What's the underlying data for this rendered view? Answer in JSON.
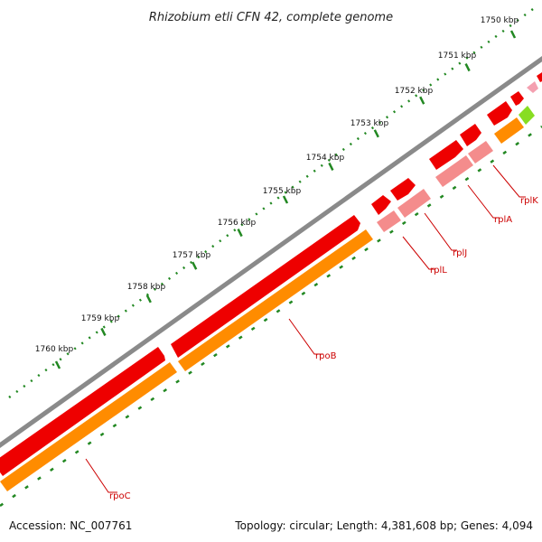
{
  "title": "Rhizobium etli CFN 42, complete genome",
  "footer": {
    "accession": "Accession: NC_007761",
    "summary": "Topology: circular; Length: 4,381,608 bp; Genes: 4,094"
  },
  "scale": {
    "ticks": [
      {
        "label": "1750 kbp"
      },
      {
        "label": "1751 kbp"
      },
      {
        "label": "1752 kbp"
      },
      {
        "label": "1753 kbp"
      },
      {
        "label": "1754 kbp"
      },
      {
        "label": "1755 kbp"
      },
      {
        "label": "1756 kbp"
      },
      {
        "label": "1757 kbp"
      },
      {
        "label": "1758 kbp"
      },
      {
        "label": "1759 kbp"
      },
      {
        "label": "1760 kbp"
      }
    ]
  },
  "genes": [
    {
      "name": "rpoC"
    },
    {
      "name": "rpoB"
    },
    {
      "name": "rplL"
    },
    {
      "name": "rplJ"
    },
    {
      "name": "rplA"
    },
    {
      "name": "rplK"
    }
  ],
  "colors": {
    "backbone": "#8a8a8a",
    "cds": "#ee0000",
    "cds_light": "#f48c8c",
    "rrna_track": "#ff8c00",
    "other_feature": "#88dd22",
    "tick": "#228822",
    "label": "#cc0000"
  }
}
